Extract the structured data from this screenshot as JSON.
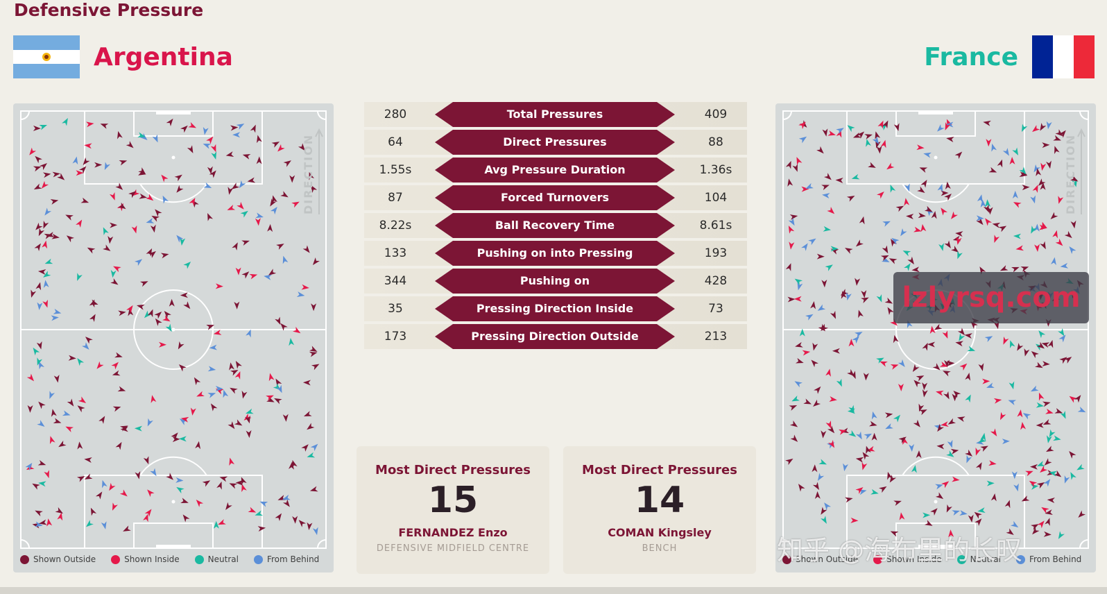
{
  "title": "Defensive Pressure",
  "teams": {
    "left": {
      "name": "Argentina"
    },
    "right": {
      "name": "France"
    }
  },
  "colors": {
    "shown_outside": "#7c1535",
    "shown_inside": "#e5194a",
    "neutral": "#1ab9a1",
    "from_behind": "#5b8fd8",
    "accent": "#7c1535"
  },
  "pitch": {
    "direction_label": "DIRECTION"
  },
  "legend": [
    {
      "label": "Shown Outside",
      "color": "#7c1535"
    },
    {
      "label": "Shown Inside",
      "color": "#e5194a"
    },
    {
      "label": "Neutral",
      "color": "#1ab9a1"
    },
    {
      "label": "From Behind",
      "color": "#5b8fd8"
    }
  ],
  "stats": [
    {
      "label": "Total Pressures",
      "left": "280",
      "right": "409"
    },
    {
      "label": "Direct Pressures",
      "left": "64",
      "right": "88"
    },
    {
      "label": "Avg Pressure Duration",
      "left": "1.55s",
      "right": "1.36s"
    },
    {
      "label": "Forced Turnovers",
      "left": "87",
      "right": "104"
    },
    {
      "label": "Ball Recovery Time",
      "left": "8.22s",
      "right": "8.61s"
    },
    {
      "label": "Pushing on into Pressing",
      "left": "133",
      "right": "193"
    },
    {
      "label": "Pushing on",
      "left": "344",
      "right": "428"
    },
    {
      "label": "Pressing Direction Inside",
      "left": "35",
      "right": "73"
    },
    {
      "label": "Pressing Direction Outside",
      "left": "173",
      "right": "213"
    }
  ],
  "awards": [
    {
      "title": "Most Direct Pressures",
      "value": "15",
      "player": "FERNANDEZ Enzo",
      "position": "DEFENSIVE MIDFIELD CENTRE"
    },
    {
      "title": "Most Direct Pressures",
      "value": "14",
      "player": "COMAN Kingsley",
      "position": "BENCH"
    }
  ],
  "watermarks": {
    "site": "lzlyrsq.com",
    "zhihu": "知乎 @海布里的长叹"
  }
}
